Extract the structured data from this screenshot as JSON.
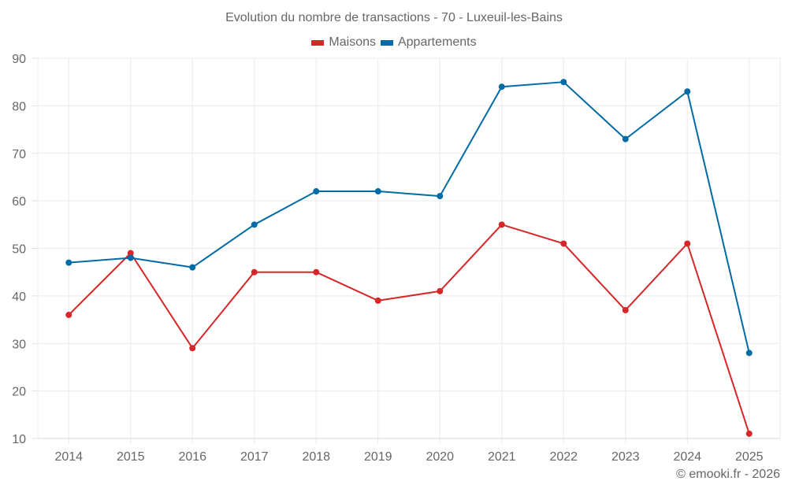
{
  "chart_data": {
    "type": "line",
    "title": "Evolution du nombre de transactions - 70 - Luxeuil-les-Bains",
    "xlabel": "",
    "ylabel": "",
    "categories": [
      "2014",
      "2015",
      "2016",
      "2017",
      "2018",
      "2019",
      "2020",
      "2021",
      "2022",
      "2023",
      "2024",
      "2025"
    ],
    "series": [
      {
        "name": "Maisons",
        "color": "#d62728",
        "values": [
          36,
          49,
          29,
          45,
          45,
          39,
          41,
          55,
          51,
          37,
          51,
          11
        ]
      },
      {
        "name": "Appartements",
        "color": "#006ba4",
        "values": [
          47,
          48,
          46,
          55,
          62,
          62,
          61,
          84,
          85,
          73,
          83,
          28
        ]
      }
    ],
    "ylim": [
      10,
      90
    ],
    "yticks": [
      10,
      20,
      30,
      40,
      50,
      60,
      70,
      80,
      90
    ],
    "grid": true,
    "legend_position": "top-center"
  },
  "credit": "© emooki.fr - 2026"
}
